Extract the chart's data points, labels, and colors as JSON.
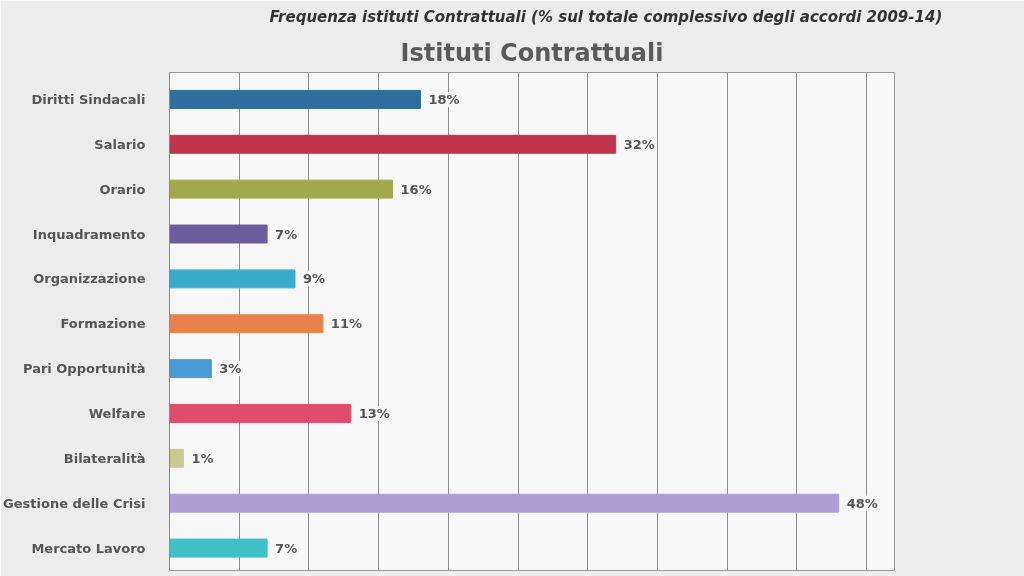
{
  "chart_data": {
    "type": "bar",
    "orientation": "horizontal",
    "title": "Istituti Contrattuali",
    "annotations": [
      "Frequenza istituti Contrattuali (% sul totale complessivo degli accordi 2009-14)"
    ],
    "categories": [
      "Diritti Sindacali",
      "Salario",
      "Orario",
      "Inquadramento",
      "Organizzazione",
      "Formazione",
      "Pari Opportunità",
      "Welfare",
      "Bilateralità",
      "Gestione delle Crisi",
      "Mercato Lavoro"
    ],
    "values": [
      18,
      32,
      16,
      7,
      9,
      11,
      3,
      13,
      1,
      48,
      7
    ],
    "value_labels": [
      "18%",
      "32%",
      "16%",
      "7%",
      "9%",
      "11%",
      "3%",
      "13%",
      "1%",
      "48%",
      "7%"
    ],
    "colors": [
      "#2f6d9c",
      "#c0344c",
      "#a2a84c",
      "#6b5c9c",
      "#3aaccb",
      "#e8804c",
      "#4a9ad6",
      "#e04c6c",
      "#c8ca92",
      "#ad9fd6",
      "#3fc0c6"
    ],
    "xlim": [
      0,
      52
    ],
    "xticks": [
      {
        "value": 0,
        "label": null
      },
      {
        "value": 5,
        "label": null
      },
      {
        "value": 10,
        "label": null
      },
      {
        "value": 15,
        "label": null
      },
      {
        "value": 20,
        "label": null
      },
      {
        "value": 25,
        "label": null
      },
      {
        "value": 30,
        "label": null
      },
      {
        "value": 35,
        "label": null
      },
      {
        "value": 40,
        "label": null
      },
      {
        "value": 45,
        "label": null
      },
      {
        "value": 50,
        "label": null
      }
    ],
    "grid": "x",
    "tick_labels": "y"
  }
}
